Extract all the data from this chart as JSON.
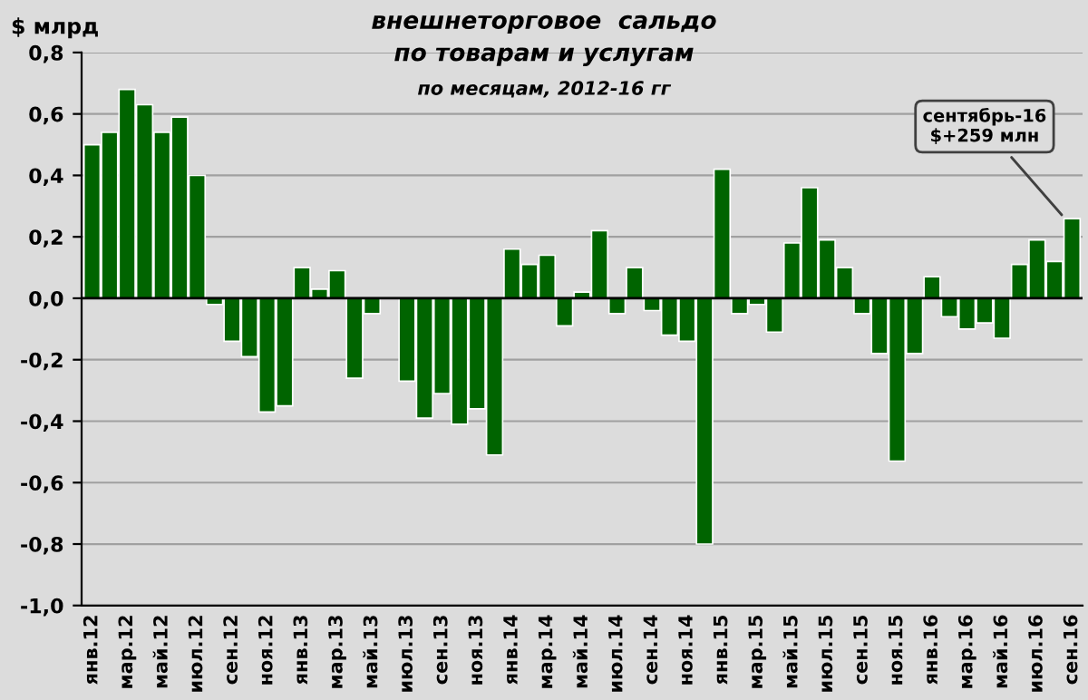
{
  "chart_data": {
    "type": "bar",
    "title": "внешнеторговое  сальдо\nпо товарам и услугам",
    "subtitle": "по месяцам, 2012-16 гг",
    "ylabel": "$ млрд",
    "categories": [
      "янв.12",
      null,
      "мар.12",
      null,
      "май.12",
      null,
      "июл.12",
      null,
      "сен.12",
      null,
      "ноя.12",
      null,
      "янв.13",
      null,
      "мар.13",
      null,
      "май.13",
      null,
      "июл.13",
      null,
      "сен.13",
      null,
      "ноя.13",
      null,
      "янв.14",
      null,
      "мар.14",
      null,
      "май.14",
      null,
      "июл.14",
      null,
      "сен.14",
      null,
      "ноя.14",
      null,
      "янв.15",
      null,
      "мар.15",
      null,
      "май.15",
      null,
      "июл.15",
      null,
      "сен.15",
      null,
      "ноя.15",
      null,
      "янв.16",
      null,
      "мар.16",
      null,
      "май.16",
      null,
      "июл.16",
      null,
      "сен.16"
    ],
    "values": [
      0.5,
      0.54,
      0.68,
      0.63,
      0.54,
      0.59,
      0.4,
      -0.02,
      -0.14,
      -0.19,
      -0.37,
      -0.35,
      0.1,
      0.03,
      0.09,
      -0.26,
      -0.05,
      null,
      -0.27,
      -0.39,
      -0.31,
      -0.41,
      -0.36,
      -0.51,
      0.16,
      0.11,
      0.14,
      -0.09,
      0.02,
      0.22,
      -0.05,
      0.1,
      -0.04,
      -0.12,
      -0.14,
      -0.8,
      0.42,
      -0.05,
      -0.02,
      -0.11,
      0.18,
      0.36,
      0.19,
      0.1,
      -0.05,
      -0.18,
      -0.53,
      -0.18,
      0.07,
      -0.06,
      -0.1,
      -0.08,
      -0.13,
      0.11,
      0.19,
      0.12,
      0.259
    ],
    "color": "#006400",
    "ylim": [
      -1.0,
      0.8
    ],
    "yticks": [
      {
        "value": -1.0,
        "label": "-1,0"
      },
      {
        "value": -0.8,
        "label": "-0,8"
      },
      {
        "value": -0.6,
        "label": "-0,6"
      },
      {
        "value": -0.4,
        "label": "-0,4"
      },
      {
        "value": -0.2,
        "label": "-0,2"
      },
      {
        "value": 0.0,
        "label": "0,0"
      },
      {
        "value": 0.2,
        "label": "0,2"
      },
      {
        "value": 0.4,
        "label": "0,4"
      },
      {
        "value": 0.6,
        "label": "0,6"
      },
      {
        "value": 0.8,
        "label": "0,8"
      }
    ],
    "grid": "y",
    "annotations": [
      {
        "text": "сентябрь-16\n$+259 млн",
        "x": "сен.16",
        "y": 0.259
      }
    ]
  }
}
